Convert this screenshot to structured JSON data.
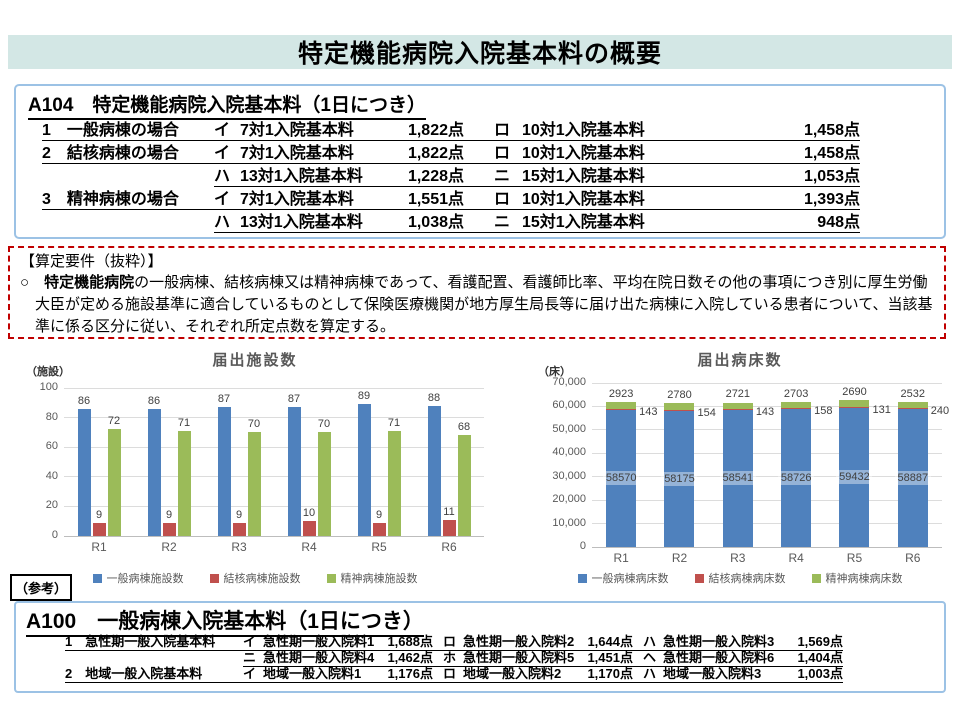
{
  "page": {
    "title": "特定機能病院入院基本料の概要"
  },
  "a104": {
    "heading": "A104　特定機能病院入院基本料（1日につき）",
    "rows": [
      {
        "case": "1　一般病棟の場合",
        "k1": "イ",
        "n1": "7対1入院基本料",
        "v1": "1,822点",
        "k2": "ロ",
        "n2": "10対1入院基本料",
        "v2": "1,458点"
      },
      {
        "case": "2　結核病棟の場合",
        "k1": "イ",
        "n1": "7対1入院基本料",
        "v1": "1,822点",
        "k2": "ロ",
        "n2": "10対1入院基本料",
        "v2": "1,458点"
      },
      {
        "case": "",
        "k1": "ハ",
        "n1": "13対1入院基本料",
        "v1": "1,228点",
        "k2": "ニ",
        "n2": "15対1入院基本料",
        "v2": "1,053点"
      },
      {
        "case": "3　精神病棟の場合",
        "k1": "イ",
        "n1": "7対1入院基本料",
        "v1": "1,551点",
        "k2": "ロ",
        "n2": "10対1入院基本料",
        "v2": "1,393点"
      },
      {
        "case": "",
        "k1": "ハ",
        "n1": "13対1入院基本料",
        "v1": "1,038点",
        "k2": "ニ",
        "n2": "15対1入院基本料",
        "v2": "948点"
      }
    ]
  },
  "requirements": {
    "heading": "【算定要件（抜粋）】",
    "bullet": "○",
    "bold_lead": "特定機能病院",
    "text": "の一般病棟、結核病棟又は精神病棟であって、看護配置、看護師比率、平均在院日数その他の事項につき別に厚生労働大臣が定める施設基準に適合しているものとして保険医療機関が地方厚生局長等に届け出た病棟に入院している患者について、当該基準に係る区分に従い、それぞれ所定点数を算定する。"
  },
  "chart_data": [
    {
      "type": "bar",
      "title": "届出施設数",
      "unit": "（施設）",
      "categories": [
        "R1",
        "R2",
        "R3",
        "R4",
        "R5",
        "R6"
      ],
      "series": [
        {
          "name": "一般病棟施設数",
          "color": "#4f81bd",
          "values": [
            86,
            86,
            87,
            87,
            89,
            88
          ]
        },
        {
          "name": "結核病棟施設数",
          "color": "#c0504d",
          "values": [
            9,
            9,
            9,
            10,
            9,
            11
          ]
        },
        {
          "name": "精神病棟施設数",
          "color": "#9bbb59",
          "values": [
            72,
            71,
            70,
            70,
            71,
            68
          ]
        }
      ],
      "ylim": [
        0,
        100
      ],
      "ytick_step": 20,
      "grid": true,
      "legend_position": "bottom"
    },
    {
      "type": "stacked-bar",
      "title": "届出病床数",
      "unit": "（床）",
      "categories": [
        "R1",
        "R2",
        "R3",
        "R4",
        "R5",
        "R6"
      ],
      "series": [
        {
          "name": "一般病棟病床数",
          "color": "#4f81bd",
          "values": [
            58570,
            58175,
            58541,
            58726,
            59432,
            58887
          ]
        },
        {
          "name": "結核病棟病床数",
          "color": "#c0504d",
          "values": [
            143,
            154,
            143,
            158,
            131,
            240
          ]
        },
        {
          "name": "精神病棟病床数",
          "color": "#9bbb59",
          "values": [
            2923,
            2780,
            2721,
            2703,
            2690,
            2532
          ]
        }
      ],
      "ylim": [
        0,
        70000
      ],
      "ytick_step": 10000,
      "grid": true,
      "legend_position": "bottom"
    }
  ],
  "reference_label": "（参考）",
  "a100": {
    "heading": "A100　一般病棟入院基本料（1日につき）",
    "rows": [
      {
        "name": "1　急性期一般入院基本料",
        "cells": [
          {
            "k": "イ",
            "n": "急性期一般入院料1",
            "v": "1,688点"
          },
          {
            "k": "ロ",
            "n": "急性期一般入院料2",
            "v": "1,644点"
          },
          {
            "k": "ハ",
            "n": "急性期一般入院料3",
            "v": "1,569点"
          }
        ]
      },
      {
        "name": "",
        "cells": [
          {
            "k": "ニ",
            "n": "急性期一般入院料4",
            "v": "1,462点"
          },
          {
            "k": "ホ",
            "n": "急性期一般入院料5",
            "v": "1,451点"
          },
          {
            "k": "ヘ",
            "n": "急性期一般入院料6",
            "v": "1,404点"
          }
        ]
      },
      {
        "name": "2　地域一般入院基本料",
        "cells": [
          {
            "k": "イ",
            "n": "地域一般入院料1",
            "v": "1,176点"
          },
          {
            "k": "ロ",
            "n": "地域一般入院料2",
            "v": "1,170点"
          },
          {
            "k": "ハ",
            "n": "地域一般入院料3",
            "v": "1,003点"
          }
        ]
      }
    ]
  },
  "colors": {
    "title_bar_teal": "#d3e7e5",
    "box_border_blue": "#9cc2e5",
    "warning_red": "#c00000",
    "bar_blue": "#4f81bd",
    "bar_red": "#c0504d",
    "bar_green": "#9bbb59"
  }
}
